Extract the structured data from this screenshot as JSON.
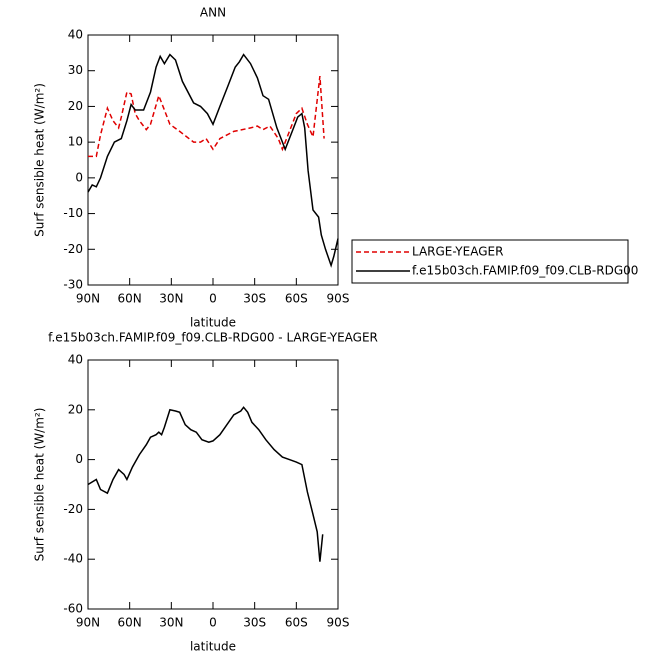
{
  "chart_data": [
    {
      "type": "line",
      "title": "ANN",
      "xlabel": "latitude",
      "ylabel": "Surf sensible heat (W/m²)",
      "xlim": [
        90,
        -90
      ],
      "xticks": [
        {
          "value": 90,
          "label": "90N"
        },
        {
          "value": 60,
          "label": "60N"
        },
        {
          "value": 30,
          "label": "30N"
        },
        0,
        {
          "value": -30,
          "label": "30S"
        },
        {
          "value": -60,
          "label": "60S"
        },
        {
          "value": -90,
          "label": "90S"
        }
      ],
      "ylim": [
        -30,
        40
      ],
      "yticks": [
        -30,
        -20,
        -10,
        0,
        10,
        20,
        30,
        40
      ],
      "legend": "right",
      "series": [
        {
          "name": "LARGE-YEAGER",
          "color": "#e00000",
          "dash": true,
          "x": [
            90,
            84,
            81,
            76,
            72,
            68,
            66,
            62,
            59,
            56,
            53,
            48,
            45,
            39,
            35,
            31,
            24,
            14,
            9,
            5,
            0,
            -5,
            -15,
            -27,
            -32,
            -36,
            -41,
            -47,
            -50,
            -55,
            -60,
            -64,
            -68,
            -72,
            -77,
            -80
          ],
          "values": [
            6,
            6,
            12,
            19.5,
            16,
            14,
            17,
            24,
            23.5,
            18,
            16,
            13.5,
            15,
            23,
            19,
            15,
            13,
            10,
            10,
            11,
            8,
            11,
            13,
            14,
            14.5,
            13.5,
            14.5,
            11,
            8,
            13,
            18,
            19.5,
            15,
            11.5,
            28.5,
            11
          ]
        },
        {
          "name": "f.e15b03ch.FAMIP.f09_f09.CLB-RDG00",
          "color": "#000000",
          "dash": false,
          "x": [
            90,
            87,
            84,
            81,
            76,
            71,
            66,
            62,
            59,
            56,
            50,
            45,
            41,
            38,
            35,
            31,
            27,
            22,
            14,
            9,
            4,
            0,
            -5,
            -11,
            -16,
            -19,
            -22,
            -27,
            -32,
            -36,
            -40,
            -46,
            -52,
            -57,
            -61,
            -64,
            -66,
            -68.5,
            -72,
            -76,
            -78,
            -81,
            -85,
            -87,
            -90
          ],
          "values": [
            -4,
            -2,
            -2.5,
            0,
            6,
            10,
            11,
            16,
            20.5,
            19,
            19,
            24,
            31,
            34,
            32,
            34.5,
            33,
            27,
            21,
            20,
            18,
            15,
            20,
            26,
            31,
            32.5,
            34.5,
            32,
            28,
            23,
            22,
            14,
            8,
            13,
            17,
            18,
            14,
            2,
            -9,
            -11,
            -16,
            -20,
            -24.5,
            -22,
            -17
          ]
        }
      ]
    },
    {
      "type": "line",
      "title": "f.e15b03ch.FAMIP.f09_f09.CLB-RDG00 - LARGE-YEAGER",
      "xlabel": "latitude",
      "ylabel": "Surf sensible heat (W/m²)",
      "xlim": [
        90,
        -90
      ],
      "xticks": [
        {
          "value": 90,
          "label": "90N"
        },
        {
          "value": 60,
          "label": "60N"
        },
        {
          "value": 30,
          "label": "30N"
        },
        0,
        {
          "value": -30,
          "label": "30S"
        },
        {
          "value": -60,
          "label": "60S"
        },
        {
          "value": -90,
          "label": "90S"
        }
      ],
      "ylim": [
        -60,
        40
      ],
      "yticks": [
        -60,
        -40,
        -20,
        0,
        20,
        40
      ],
      "series": [
        {
          "color": "#000000",
          "dash": false,
          "x": [
            90,
            84,
            81,
            76,
            72,
            68,
            64,
            62,
            58,
            53,
            48,
            45,
            41,
            39,
            37,
            35,
            31,
            27,
            24,
            20,
            16,
            12,
            8,
            3,
            0,
            -5,
            -10,
            -15,
            -20,
            -22,
            -25,
            -28,
            -33,
            -38,
            -44,
            -50,
            -55,
            -60,
            -64,
            -68,
            -72,
            -75,
            -77,
            -79
          ],
          "values": [
            -10,
            -8,
            -12,
            -13.5,
            -8,
            -4,
            -6,
            -8,
            -3,
            2,
            6,
            9,
            10,
            11,
            10,
            13,
            20,
            19.5,
            19,
            14,
            12,
            11,
            8,
            7,
            7.5,
            10,
            14,
            18,
            19.5,
            21,
            19,
            15,
            12,
            8,
            4,
            1,
            0,
            -1,
            -2,
            -13,
            -22,
            -29,
            -41,
            -30
          ]
        }
      ]
    }
  ]
}
